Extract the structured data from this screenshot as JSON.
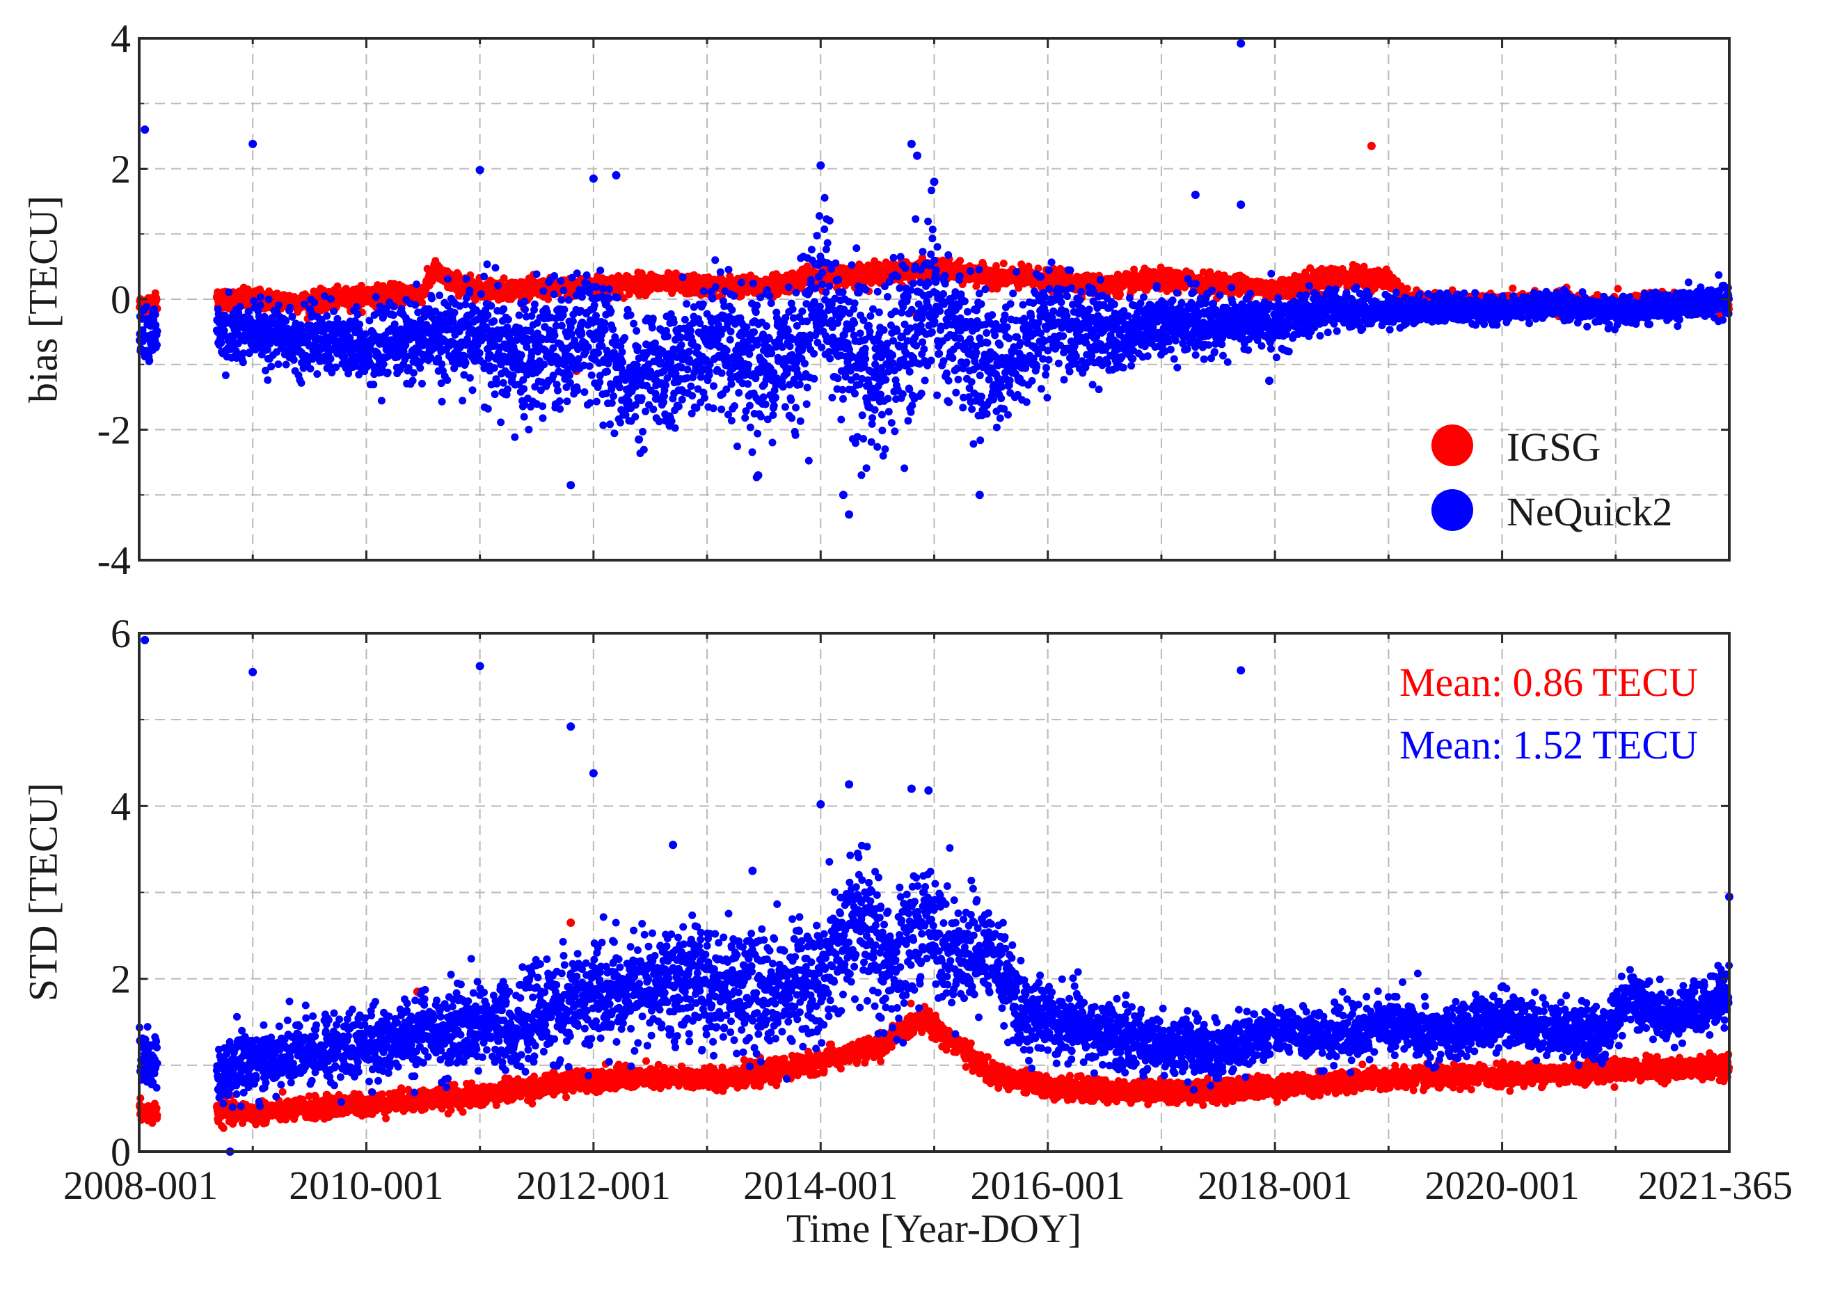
{
  "chart_data": [
    {
      "type": "scatter",
      "panel": "top",
      "title": "",
      "xlabel": "",
      "ylabel": "bias [TECU]",
      "xlim": [
        2008.0,
        2022.0
      ],
      "ylim": [
        -4,
        4
      ],
      "yticks": [
        -4,
        -2,
        0,
        2,
        4
      ],
      "grid": true,
      "legend_position": "bottom-right",
      "legend": [
        "IGSG",
        "NeQuick2"
      ],
      "series": [
        {
          "name": "IGSG",
          "color": "#ff0000",
          "envelope": {
            "x": [
              2008.0,
              2008.15,
              2008.7,
              2009.0,
              2009.5,
              2010.0,
              2010.5,
              2010.6,
              2010.7,
              2011.0,
              2011.5,
              2012.0,
              2012.5,
              2013.0,
              2013.5,
              2014.0,
              2014.5,
              2015.0,
              2015.5,
              2016.0,
              2016.5,
              2017.0,
              2017.5,
              2018.0,
              2018.5,
              2019.0,
              2019.2,
              2019.5,
              2020.0,
              2020.5,
              2021.0,
              2021.5,
              2022.0
            ],
            "y": [
              -0.1,
              -0.05,
              0.0,
              0.0,
              -0.05,
              0.05,
              0.1,
              0.45,
              0.3,
              0.15,
              0.15,
              0.2,
              0.25,
              0.2,
              0.2,
              0.35,
              0.4,
              0.45,
              0.35,
              0.3,
              0.2,
              0.3,
              0.25,
              0.15,
              0.35,
              0.3,
              -0.05,
              -0.05,
              -0.1,
              -0.05,
              -0.1,
              -0.05,
              -0.1
            ],
            "spread": 0.12
          },
          "outliers": [
            {
              "x": 2018.85,
              "y": 2.35
            },
            {
              "x": 2011.85,
              "y": -1.1
            },
            {
              "x": 2014.8,
              "y": -0.2
            }
          ]
        },
        {
          "name": "NeQuick2",
          "color": "#0000ff",
          "envelope": {
            "x": [
              2008.0,
              2008.15,
              2008.7,
              2009.0,
              2009.5,
              2010.0,
              2010.5,
              2011.0,
              2011.3,
              2011.5,
              2012.0,
              2012.3,
              2012.6,
              2013.0,
              2013.5,
              2013.8,
              2014.0,
              2014.2,
              2014.5,
              2014.8,
              2015.0,
              2015.3,
              2015.5,
              2016.0,
              2016.5,
              2017.0,
              2017.5,
              2018.0,
              2018.5,
              2019.0,
              2019.5,
              2020.0,
              2020.5,
              2021.0,
              2021.5,
              2022.0
            ],
            "y": [
              -0.5,
              -0.5,
              -0.4,
              -0.4,
              -0.6,
              -0.6,
              -0.5,
              -0.4,
              -0.8,
              -0.7,
              -0.3,
              -1.0,
              -0.9,
              -0.6,
              -0.8,
              -0.6,
              0.4,
              -0.6,
              -0.9,
              -0.4,
              0.0,
              -0.6,
              -0.9,
              -0.3,
              -0.4,
              -0.3,
              -0.3,
              -0.3,
              -0.1,
              -0.15,
              -0.1,
              -0.15,
              -0.05,
              -0.15,
              -0.05,
              0.0
            ],
            "spread": {
              "x": [
                2008.0,
                2010.0,
                2011.0,
                2012.0,
                2013.0,
                2014.0,
                2015.0,
                2016.0,
                2017.0,
                2018.0,
                2019.0,
                2020.0,
                2022.0
              ],
              "s": [
                0.25,
                0.3,
                0.5,
                0.6,
                0.55,
                0.7,
                0.75,
                0.45,
                0.3,
                0.22,
                0.14,
                0.12,
                0.14
              ]
            }
          },
          "outliers": [
            {
              "x": 2008.05,
              "y": 2.6
            },
            {
              "x": 2009.0,
              "y": 2.38
            },
            {
              "x": 2011.0,
              "y": 1.98
            },
            {
              "x": 2012.0,
              "y": 1.85
            },
            {
              "x": 2012.2,
              "y": 1.9
            },
            {
              "x": 2014.0,
              "y": 2.05
            },
            {
              "x": 2014.8,
              "y": 2.38
            },
            {
              "x": 2014.85,
              "y": 2.2
            },
            {
              "x": 2015.0,
              "y": 1.8
            },
            {
              "x": 2017.3,
              "y": 1.6
            },
            {
              "x": 2017.7,
              "y": 3.92
            },
            {
              "x": 2017.7,
              "y": 1.45
            },
            {
              "x": 2011.8,
              "y": -2.85
            },
            {
              "x": 2013.45,
              "y": -2.7
            },
            {
              "x": 2014.25,
              "y": -3.3
            },
            {
              "x": 2014.2,
              "y": -3.0
            },
            {
              "x": 2015.4,
              "y": -3.0
            },
            {
              "x": 2012.4,
              "y": -2.15
            },
            {
              "x": 2017.95,
              "y": -1.25
            }
          ]
        }
      ]
    },
    {
      "type": "scatter",
      "panel": "bottom",
      "title": "",
      "xlabel": "Time [Year-DOY]",
      "ylabel": "STD [TECU]",
      "xlim": [
        2008.0,
        2022.0
      ],
      "ylim": [
        0,
        6
      ],
      "yticks": [
        0,
        2,
        4,
        6
      ],
      "xticks": [
        2008.0,
        2010.0,
        2012.0,
        2014.0,
        2016.0,
        2018.0,
        2020.0,
        2022.0
      ],
      "xticklabels": [
        "2008-001",
        "2010-001",
        "2012-001",
        "2014-001",
        "2016-001",
        "2018-001",
        "2020-001",
        "2021-365"
      ],
      "grid": true,
      "annotations": [
        {
          "text": "Mean: 0.86 TECU",
          "series": "IGSG",
          "color": "#ff0000"
        },
        {
          "text": "Mean: 1.52 TECU",
          "series": "NeQuick2",
          "color": "#0000ff"
        }
      ],
      "series": [
        {
          "name": "IGSG",
          "color": "#ff0000",
          "envelope": {
            "x": [
              2008.0,
              2008.15,
              2008.7,
              2009.0,
              2009.5,
              2010.0,
              2010.5,
              2011.0,
              2011.5,
              2012.0,
              2012.5,
              2013.0,
              2013.5,
              2014.0,
              2014.5,
              2014.9,
              2015.1,
              2015.5,
              2016.0,
              2016.5,
              2017.0,
              2017.5,
              2018.0,
              2018.5,
              2019.0,
              2019.5,
              2020.0,
              2020.5,
              2021.0,
              2021.5,
              2022.0
            ],
            "y": [
              0.45,
              0.45,
              0.45,
              0.45,
              0.5,
              0.55,
              0.6,
              0.65,
              0.75,
              0.85,
              0.85,
              0.85,
              0.9,
              1.05,
              1.2,
              1.55,
              1.35,
              0.9,
              0.75,
              0.7,
              0.7,
              0.7,
              0.75,
              0.8,
              0.85,
              0.85,
              0.9,
              0.9,
              0.95,
              0.95,
              1.0
            ],
            "spread": 0.1
          },
          "outliers": [
            {
              "x": 2011.8,
              "y": 2.65
            },
            {
              "x": 2010.45,
              "y": 1.85
            }
          ]
        },
        {
          "name": "NeQuick2",
          "color": "#0000ff",
          "envelope": {
            "x": [
              2008.0,
              2008.15,
              2008.7,
              2009.0,
              2009.5,
              2010.0,
              2010.5,
              2011.0,
              2011.5,
              2012.0,
              2012.5,
              2013.0,
              2013.5,
              2014.0,
              2014.3,
              2014.6,
              2014.9,
              2015.2,
              2015.5,
              2015.8,
              2016.0,
              2016.5,
              2017.0,
              2017.5,
              2018.0,
              2018.5,
              2019.0,
              2019.5,
              2020.0,
              2020.5,
              2020.9,
              2021.1,
              2021.5,
              2022.0
            ],
            "y": [
              1.0,
              1.0,
              0.8,
              1.0,
              1.1,
              1.2,
              1.3,
              1.35,
              1.5,
              1.7,
              1.8,
              1.85,
              1.8,
              1.9,
              2.6,
              2.0,
              2.6,
              2.2,
              2.2,
              1.5,
              1.45,
              1.3,
              1.2,
              1.1,
              1.4,
              1.25,
              1.45,
              1.3,
              1.5,
              1.35,
              1.3,
              1.75,
              1.45,
              1.8
            ],
            "spread": {
              "x": [
                2008.0,
                2010.0,
                2012.0,
                2013.0,
                2014.0,
                2015.0,
                2016.0,
                2018.0,
                2022.0
              ],
              "s": [
                0.2,
                0.25,
                0.35,
                0.4,
                0.45,
                0.45,
                0.25,
                0.18,
                0.2
              ]
            }
          },
          "outliers": [
            {
              "x": 2008.05,
              "y": 5.92
            },
            {
              "x": 2009.0,
              "y": 5.55
            },
            {
              "x": 2011.0,
              "y": 5.62
            },
            {
              "x": 2011.8,
              "y": 4.92
            },
            {
              "x": 2012.0,
              "y": 4.38
            },
            {
              "x": 2014.25,
              "y": 4.25
            },
            {
              "x": 2014.0,
              "y": 4.02
            },
            {
              "x": 2014.8,
              "y": 4.2
            },
            {
              "x": 2014.95,
              "y": 4.18
            },
            {
              "x": 2017.7,
              "y": 5.57
            },
            {
              "x": 2008.8,
              "y": 0.0
            },
            {
              "x": 2012.7,
              "y": 3.55
            },
            {
              "x": 2013.4,
              "y": 3.25
            },
            {
              "x": 2022.0,
              "y": 2.95
            }
          ]
        }
      ]
    }
  ]
}
